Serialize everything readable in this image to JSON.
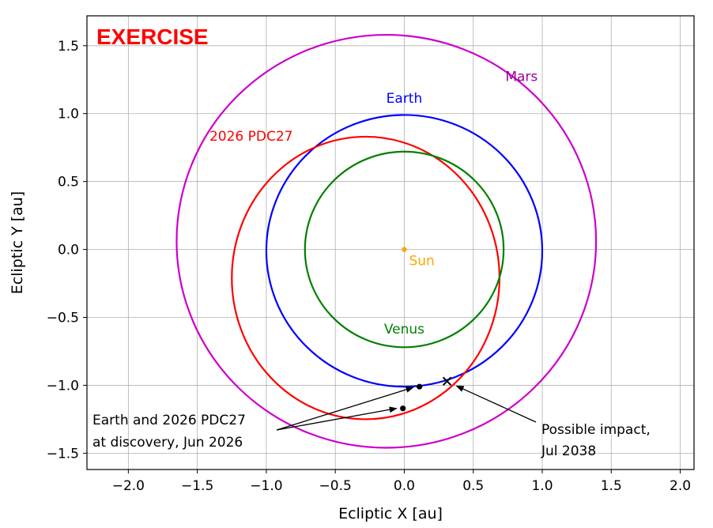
{
  "chart_data": {
    "type": "line",
    "stamp": "EXERCISE",
    "xlabel": "Ecliptic X [au]",
    "ylabel": "Ecliptic Y [au]",
    "xlim": [
      -2.3,
      2.1
    ],
    "ylim": [
      -1.62,
      1.72
    ],
    "x_ticks": [
      -2.0,
      -1.5,
      -1.0,
      -0.5,
      0.0,
      0.5,
      1.0,
      1.5,
      2.0
    ],
    "x_tick_labels": [
      "−2.0",
      "−1.5",
      "−1.0",
      "−0.5",
      "0.0",
      "0.5",
      "1.0",
      "1.5",
      "2.0"
    ],
    "y_ticks": [
      1.5,
      1.0,
      0.5,
      0.0,
      -0.5,
      -1.0,
      -1.5
    ],
    "y_tick_labels": [
      "1.5",
      "1.0",
      "0.5",
      "0.0",
      "−0.5",
      "−1.0",
      "−1.5"
    ],
    "grid": true,
    "orbits": [
      {
        "name": "Mars",
        "color": "#cc00cc",
        "label_color": "#990099",
        "cx": -0.13,
        "cy": 0.06,
        "rx": 1.52,
        "ry": 1.52
      },
      {
        "name": "Earth",
        "color": "#0000ff",
        "label_color": "#0000ff",
        "cx": 0.0,
        "cy": -0.01,
        "rx": 1.0,
        "ry": 1.0
      },
      {
        "name": "2026 PDC27",
        "color": "#ff0000",
        "label_color": "#ff0000",
        "cx": -0.28,
        "cy": -0.21,
        "rx": 0.97,
        "ry": 1.04
      },
      {
        "name": "Venus",
        "color": "#008000",
        "label_color": "#008000",
        "cx": 0.0,
        "cy": 0.0,
        "rx": 0.72,
        "ry": 0.72
      }
    ],
    "sun": {
      "name": "Sun",
      "x": 0.0,
      "y": 0.0,
      "color": "#ffa500"
    },
    "discovery_points": [
      {
        "x": 0.11,
        "y": -1.01
      },
      {
        "x": -0.01,
        "y": -1.17
      }
    ],
    "impact_point": {
      "x": 0.31,
      "y": -0.97
    },
    "annotations": {
      "discovery": {
        "line1": "Earth and 2026 PDC27",
        "line2": "at discovery, Jun 2026"
      },
      "impact": {
        "line1": "Possible impact,",
        "line2": "Jul 2038"
      }
    }
  }
}
